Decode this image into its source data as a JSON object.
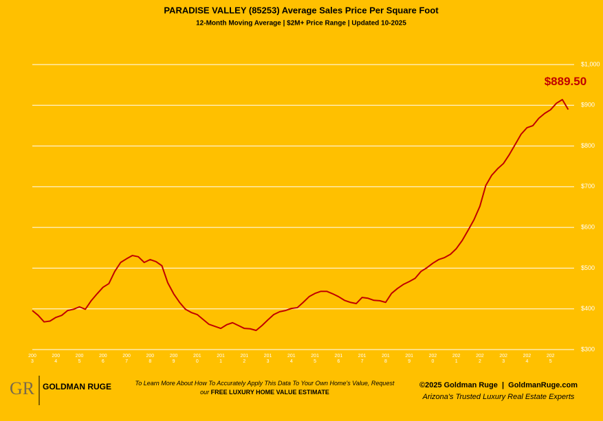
{
  "chart_data": {
    "type": "line",
    "title": "PARADISE VALLEY (85253) Average Sales Price Per Square Foot",
    "subtitle": "12-Month Moving Average | $2M+ Price Range | Updated 10-2025",
    "annotation": "$889.50",
    "color": "#C00000",
    "grid": true,
    "x": [
      2003,
      2003.25,
      2003.5,
      2003.75,
      2004,
      2004.25,
      2004.5,
      2004.75,
      2005,
      2005.25,
      2005.5,
      2005.75,
      2006,
      2006.25,
      2006.5,
      2006.75,
      2007,
      2007.25,
      2007.5,
      2007.75,
      2008,
      2008.25,
      2008.5,
      2008.75,
      2009,
      2009.25,
      2009.5,
      2009.75,
      2010,
      2010.25,
      2010.5,
      2010.75,
      2011,
      2011.25,
      2011.5,
      2011.75,
      2012,
      2012.25,
      2012.5,
      2012.75,
      2013,
      2013.25,
      2013.5,
      2013.75,
      2014,
      2014.25,
      2014.5,
      2014.75,
      2015,
      2015.25,
      2015.5,
      2015.75,
      2016,
      2016.25,
      2016.5,
      2016.75,
      2017,
      2017.25,
      2017.5,
      2017.75,
      2018,
      2018.25,
      2018.5,
      2018.75,
      2019,
      2019.25,
      2019.5,
      2019.75,
      2020,
      2020.25,
      2020.5,
      2020.75,
      2021,
      2021.25,
      2021.5,
      2021.75,
      2022,
      2022.25,
      2022.5,
      2022.75,
      2023,
      2023.25,
      2023.5,
      2023.75,
      2024,
      2024.25,
      2024.5,
      2024.75,
      2025,
      2025.25,
      2025.5,
      2025.75
    ],
    "values": [
      396,
      384,
      368,
      370,
      379,
      384,
      396,
      399,
      405,
      399,
      420,
      437,
      453,
      462,
      492,
      514,
      523,
      531,
      528,
      514,
      521,
      516,
      506,
      464,
      437,
      416,
      399,
      391,
      386,
      374,
      362,
      357,
      352,
      361,
      366,
      359,
      352,
      351,
      347,
      359,
      373,
      386,
      393,
      396,
      401,
      403,
      416,
      430,
      438,
      443,
      443,
      437,
      430,
      421,
      416,
      413,
      428,
      426,
      421,
      420,
      416,
      438,
      450,
      460,
      467,
      475,
      492,
      501,
      512,
      521,
      526,
      534,
      548,
      568,
      593,
      619,
      652,
      703,
      728,
      744,
      757,
      779,
      804,
      829,
      845,
      850,
      868,
      880,
      889,
      905,
      914,
      889.5
    ],
    "xlim": [
      2003,
      2026
    ],
    "xticks": [
      2003,
      2004,
      2005,
      2006,
      2007,
      2008,
      2009,
      2010,
      2011,
      2012,
      2013,
      2014,
      2015,
      2016,
      2017,
      2018,
      2019,
      2020,
      2021,
      2022,
      2023,
      2024,
      2025
    ],
    "ylim": [
      300,
      1000
    ],
    "yticks": [
      {
        "value": 300,
        "label": "$300"
      },
      {
        "value": 400,
        "label": "$400"
      },
      {
        "value": 500,
        "label": "$500"
      },
      {
        "value": 600,
        "label": "$600"
      },
      {
        "value": 700,
        "label": "$700"
      },
      {
        "value": 800,
        "label": "$800"
      },
      {
        "value": 900,
        "label": "$900"
      },
      {
        "value": 1000,
        "label": "$1,000"
      }
    ]
  },
  "footer": {
    "logo_mark": "GR",
    "logo": "GOLDMAN RUGE",
    "cta_text": "To Learn More About How To Accurately Apply This Data To Your Own Home's Value, Request our",
    "cta_link": "FREE LUXURY HOME VALUE ESTIMATE",
    "copyright": "©2025 Goldman Ruge  |  GoldmanRuge.com",
    "tagline": "Arizona's Trusted Luxury Real Estate Experts"
  }
}
